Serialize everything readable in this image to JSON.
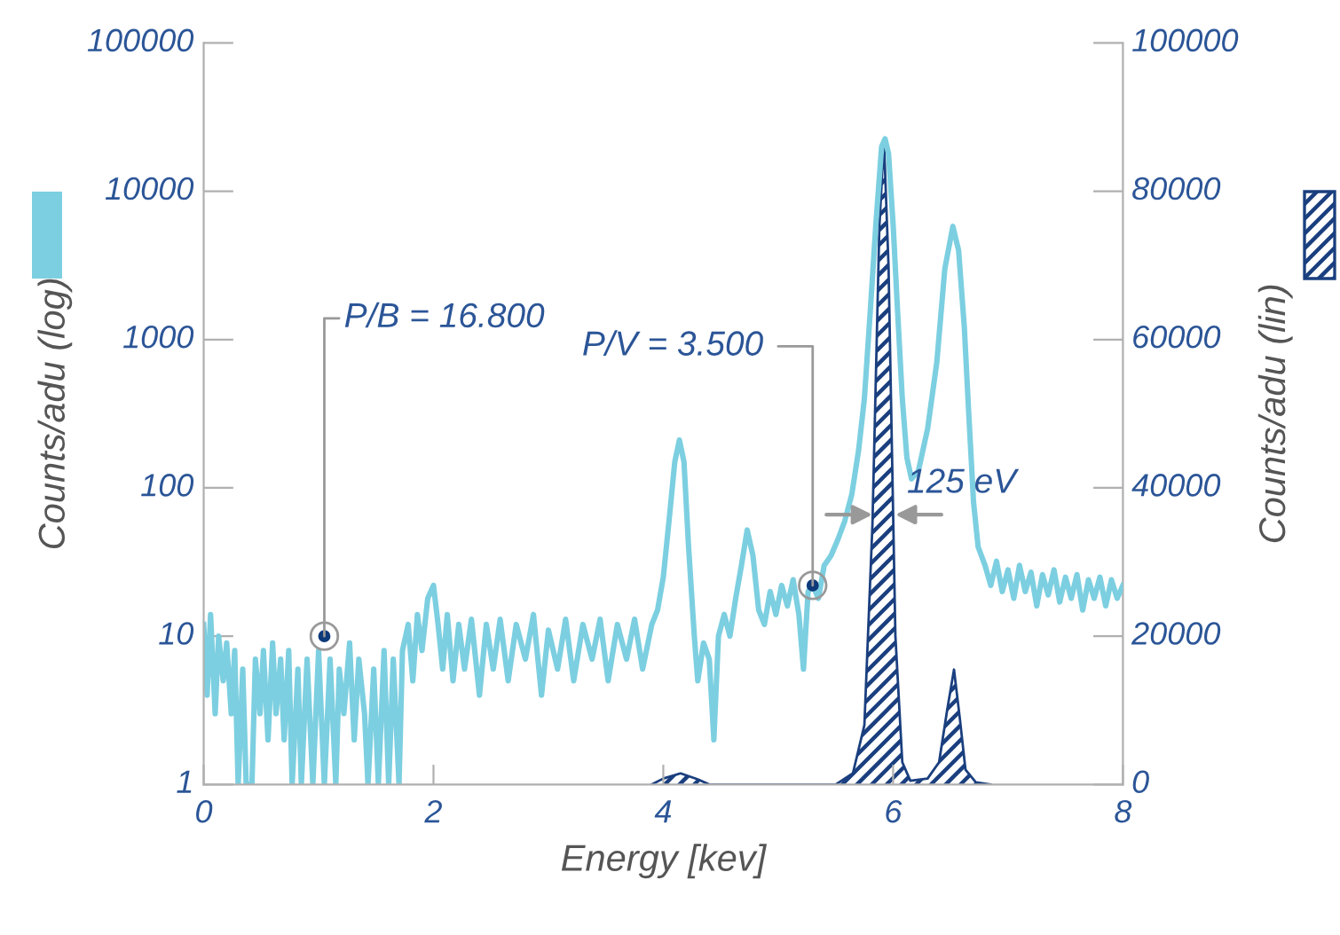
{
  "chart_data": {
    "type": "line",
    "xlabel": "Energy [kev]",
    "ylabel": "Counts/adu (log)",
    "y2label": "Counts/adu (lin)",
    "log": "y",
    "xlim": [
      0,
      8
    ],
    "xticks": [
      0,
      2,
      4,
      6,
      8
    ],
    "ylim": [
      1,
      100000
    ],
    "yticks": [
      1,
      10,
      100,
      1000,
      10000,
      100000
    ],
    "y2lim": [
      0,
      100000
    ],
    "y2ticks": [
      0,
      20000,
      40000,
      60000,
      80000,
      100000
    ],
    "grid": false,
    "legend": false,
    "series": [
      {
        "type": "line",
        "color": "#7ccfe0",
        "x": [
          0.0,
          0.03,
          0.06,
          0.1,
          0.13,
          0.17,
          0.2,
          0.24,
          0.27,
          0.3,
          0.34,
          0.37,
          0.42,
          0.45,
          0.49,
          0.52,
          0.56,
          0.6,
          0.63,
          0.67,
          0.7,
          0.74,
          0.77,
          0.82,
          0.85,
          0.9,
          0.95,
          1.0,
          1.05,
          1.1,
          1.15,
          1.18,
          1.22,
          1.27,
          1.31,
          1.35,
          1.4,
          1.43,
          1.48,
          1.52,
          1.57,
          1.61,
          1.65,
          1.7,
          1.73,
          1.78,
          1.82,
          1.86,
          1.9,
          1.95,
          2.0,
          2.04,
          2.08,
          2.12,
          2.17,
          2.22,
          2.27,
          2.33,
          2.4,
          2.46,
          2.52,
          2.58,
          2.65,
          2.72,
          2.8,
          2.87,
          2.94,
          3.0,
          3.08,
          3.15,
          3.22,
          3.3,
          3.38,
          3.45,
          3.52,
          3.6,
          3.68,
          3.75,
          3.82,
          3.9,
          3.95,
          4.0,
          4.05,
          4.1,
          4.14,
          4.18,
          4.22,
          4.27,
          4.3,
          4.35,
          4.4,
          4.44,
          4.48,
          4.53,
          4.58,
          4.63,
          4.68,
          4.73,
          4.78,
          4.83,
          4.88,
          4.93,
          4.98,
          5.03,
          5.08,
          5.13,
          5.18,
          5.22,
          5.26,
          5.3,
          5.35,
          5.4,
          5.46,
          5.52,
          5.58,
          5.64,
          5.7,
          5.75,
          5.8,
          5.85,
          5.9,
          5.93,
          5.96,
          6.0,
          6.04,
          6.08,
          6.12,
          6.16,
          6.22,
          6.3,
          6.38,
          6.45,
          6.52,
          6.57,
          6.62,
          6.66,
          6.7,
          6.74,
          6.8,
          6.85,
          6.9,
          6.95,
          7.0,
          7.05,
          7.1,
          7.15,
          7.2,
          7.25,
          7.3,
          7.35,
          7.4,
          7.45,
          7.5,
          7.55,
          7.6,
          7.65,
          7.7,
          7.75,
          7.8,
          7.85,
          7.9,
          7.95,
          8.0
        ],
        "values": [
          12,
          4,
          14,
          3,
          10,
          5,
          9,
          3,
          8,
          1,
          6,
          1,
          1,
          7,
          3,
          8,
          2,
          9,
          3,
          7,
          2,
          8,
          1,
          6,
          1,
          7,
          1,
          8,
          1,
          7,
          1,
          6,
          3,
          9,
          2,
          7,
          3,
          1,
          6,
          1,
          8,
          1,
          7,
          1,
          8,
          12,
          5,
          14,
          8,
          18,
          22,
          12,
          6,
          14,
          5,
          12,
          6,
          13,
          4,
          12,
          6,
          13,
          5,
          12,
          7,
          14,
          4,
          11,
          6,
          13,
          5,
          12,
          7,
          13,
          5,
          12,
          7,
          13,
          6,
          12,
          15,
          25,
          60,
          150,
          210,
          150,
          40,
          10,
          5,
          9,
          7,
          2,
          10,
          14,
          10,
          18,
          30,
          52,
          35,
          15,
          12,
          20,
          14,
          22,
          16,
          24,
          14,
          6,
          20,
          22,
          18,
          30,
          35,
          45,
          60,
          90,
          180,
          400,
          1500,
          6000,
          20000,
          22600,
          18000,
          6000,
          1500,
          400,
          160,
          115,
          130,
          250,
          700,
          3000,
          5800,
          4000,
          1200,
          300,
          80,
          40,
          30,
          22,
          32,
          20,
          28,
          18,
          30,
          20,
          27,
          16,
          26,
          19,
          28,
          17,
          25,
          18,
          26,
          15,
          24,
          18,
          25,
          16,
          24,
          18,
          22
        ]
      },
      {
        "type": "area",
        "axis": "y2",
        "color": "#1a3f7f",
        "x": [
          3.9,
          4.0,
          4.15,
          4.3,
          4.4,
          5.5,
          5.65,
          5.75,
          5.82,
          5.88,
          5.92,
          5.96,
          6.02,
          6.08,
          6.15,
          6.3,
          6.4,
          6.47,
          6.53,
          6.58,
          6.63,
          6.72,
          6.85
        ],
        "values": [
          0,
          800,
          1500,
          700,
          0,
          0,
          1500,
          8000,
          35000,
          75000,
          87000,
          70000,
          20000,
          3000,
          500,
          800,
          3000,
          10000,
          15500,
          9000,
          2000,
          300,
          0
        ]
      }
    ],
    "annotations": [
      {
        "text": "P/B = 16.800",
        "x": 1.05,
        "y": 10
      },
      {
        "text": "P/V = 3.500",
        "x": 5.3,
        "y": 22
      },
      {
        "text": "125 eV",
        "x": 5.92,
        "y": 66
      }
    ]
  }
}
